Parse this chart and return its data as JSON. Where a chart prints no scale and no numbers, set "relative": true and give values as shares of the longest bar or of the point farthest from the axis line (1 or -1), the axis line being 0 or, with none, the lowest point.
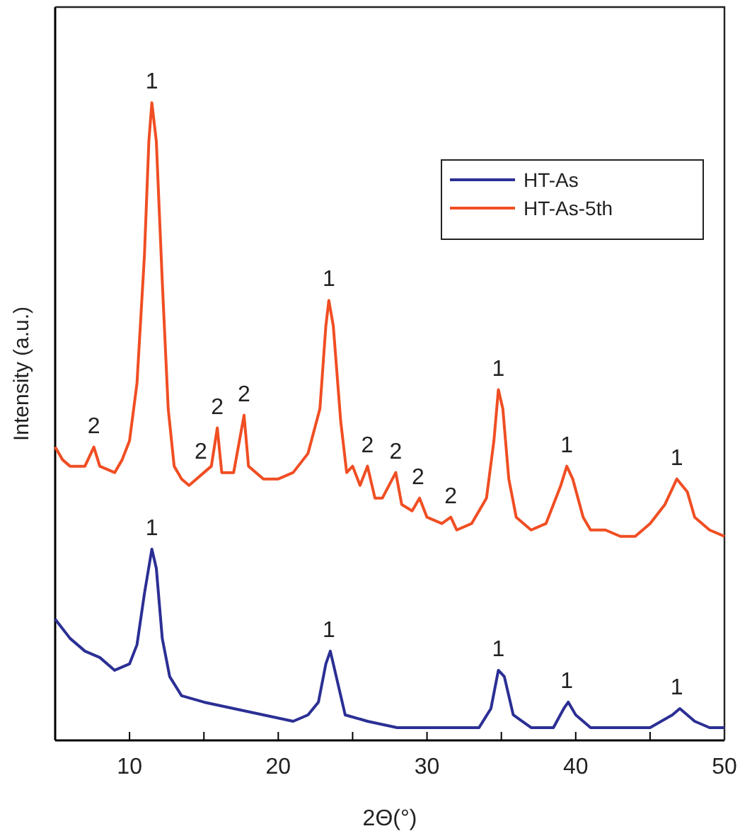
{
  "chart_data": {
    "type": "line",
    "relative": true,
    "xlabel": "2Θ(°)",
    "ylabel": "Intensity (a.u.)",
    "xlim": [
      5,
      50
    ],
    "xticks": [
      {
        "value": 5,
        "label": null
      },
      10,
      {
        "value": 15,
        "label": null
      },
      20,
      {
        "value": 25,
        "label": null
      },
      30,
      {
        "value": 35,
        "label": null
      },
      40,
      {
        "value": 45,
        "label": null
      },
      50
    ],
    "tick_labels": "x",
    "legend": "top right",
    "grid": false,
    "marker": "none",
    "line_style": "solid",
    "series": [
      {
        "name": "HT-As",
        "color": "#2b2f94",
        "x": [
          5,
          6,
          7,
          8,
          9,
          10,
          10.5,
          11,
          11.5,
          11.8,
          12.2,
          12.7,
          13.5,
          15,
          17,
          19,
          21,
          22,
          22.7,
          23.2,
          23.5,
          23.9,
          24.5,
          26,
          28,
          30,
          32,
          33.5,
          34.3,
          34.8,
          35.2,
          35.8,
          37,
          38.5,
          39.2,
          39.5,
          40,
          41,
          43,
          45,
          46.5,
          47,
          48,
          49,
          50
        ],
        "values": [
          0.19,
          0.16,
          0.14,
          0.13,
          0.11,
          0.12,
          0.15,
          0.23,
          0.3,
          0.27,
          0.16,
          0.1,
          0.07,
          0.06,
          0.05,
          0.04,
          0.03,
          0.04,
          0.06,
          0.12,
          0.14,
          0.1,
          0.04,
          0.03,
          0.02,
          0.02,
          0.02,
          0.02,
          0.05,
          0.11,
          0.1,
          0.04,
          0.02,
          0.02,
          0.05,
          0.06,
          0.04,
          0.02,
          0.02,
          0.02,
          0.04,
          0.05,
          0.03,
          0.02,
          0.02
        ]
      },
      {
        "name": "HT-As-5th",
        "color": "#f04e23",
        "x": [
          5,
          5.5,
          6,
          7,
          7.6,
          8,
          9,
          9.5,
          10,
          10.5,
          11,
          11.3,
          11.5,
          11.8,
          12.2,
          12.6,
          13,
          13.5,
          14,
          14.5,
          15,
          15.5,
          15.9,
          16.2,
          17,
          17.7,
          18,
          19,
          20,
          21,
          22,
          22.8,
          23.2,
          23.4,
          23.7,
          24.2,
          24.6,
          25,
          25.5,
          26,
          26.5,
          27,
          27.9,
          28.3,
          29,
          29.5,
          30,
          31,
          31.6,
          32,
          33,
          34,
          34.5,
          34.8,
          35.1,
          35.5,
          36,
          37,
          38,
          39,
          39.4,
          39.8,
          40.5,
          41,
          42,
          43,
          44,
          45,
          46,
          46.8,
          47.5,
          48,
          49,
          50
        ],
        "values": [
          0.46,
          0.44,
          0.43,
          0.43,
          0.46,
          0.43,
          0.42,
          0.44,
          0.47,
          0.56,
          0.76,
          0.94,
          1,
          0.94,
          0.72,
          0.52,
          0.43,
          0.41,
          0.4,
          0.41,
          0.42,
          0.43,
          0.49,
          0.42,
          0.42,
          0.51,
          0.43,
          0.41,
          0.41,
          0.42,
          0.45,
          0.52,
          0.65,
          0.69,
          0.65,
          0.5,
          0.42,
          0.43,
          0.4,
          0.43,
          0.38,
          0.38,
          0.42,
          0.37,
          0.36,
          0.38,
          0.35,
          0.34,
          0.35,
          0.33,
          0.34,
          0.38,
          0.47,
          0.55,
          0.52,
          0.41,
          0.35,
          0.33,
          0.34,
          0.4,
          0.43,
          0.41,
          0.35,
          0.33,
          0.33,
          0.32,
          0.32,
          0.34,
          0.37,
          0.41,
          0.39,
          0.35,
          0.33,
          0.32
        ]
      }
    ],
    "annotations": [
      {
        "text": "1",
        "x": 11.5,
        "y": 1
      },
      {
        "text": "2",
        "x": 7.6,
        "y": 0.46
      },
      {
        "text": "2",
        "x": 14.8,
        "y": 0.42
      },
      {
        "text": "2",
        "x": 15.9,
        "y": 0.49
      },
      {
        "text": "2",
        "x": 17.7,
        "y": 0.51
      },
      {
        "text": "1",
        "x": 23.4,
        "y": 0.69
      },
      {
        "text": "2",
        "x": 26,
        "y": 0.43
      },
      {
        "text": "2",
        "x": 27.9,
        "y": 0.42
      },
      {
        "text": "2",
        "x": 29.4,
        "y": 0.38
      },
      {
        "text": "2",
        "x": 31.6,
        "y": 0.35
      },
      {
        "text": "1",
        "x": 34.8,
        "y": 0.55
      },
      {
        "text": "1",
        "x": 39.4,
        "y": 0.43
      },
      {
        "text": "1",
        "x": 46.8,
        "y": 0.41
      },
      {
        "text": "1",
        "x": 11.5,
        "y": 0.3
      },
      {
        "text": "1",
        "x": 23.4,
        "y": 0.14
      },
      {
        "text": "1",
        "x": 34.8,
        "y": 0.11
      },
      {
        "text": "1",
        "x": 39.4,
        "y": 0.06
      },
      {
        "text": "1",
        "x": 46.8,
        "y": 0.05
      }
    ]
  }
}
